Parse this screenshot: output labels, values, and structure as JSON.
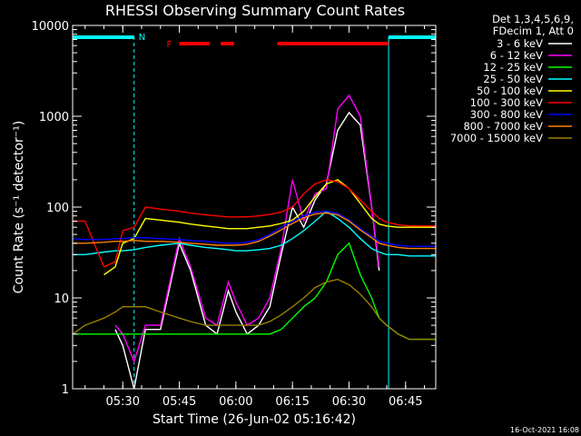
{
  "chart_data": {
    "type": "line",
    "title": "RHESSI Observing Summary Count Rates",
    "xlabel": "Start Time (26-Jun-02 05:16:42)",
    "ylabel": "Count Rate (s⁻¹ detector⁻¹)",
    "yscale": "log",
    "ylim": [
      1,
      10000
    ],
    "xlim": [
      "05:16:42",
      "06:53:00"
    ],
    "x_ticks": [
      "05:30",
      "05:45",
      "06:00",
      "06:15",
      "06:30",
      "06:45"
    ],
    "y_ticks": [
      "1",
      "10",
      "100",
      "1000",
      "10000"
    ],
    "legend_header": [
      "Det 1,3,4,5,6,9,",
      "FDecim 1, Att 0"
    ],
    "legend_position": "right",
    "flags": {
      "N_label": "N",
      "F_label": "F",
      "night_color": "#00ffff",
      "flare_color": "#ff0000",
      "night_segments": [
        [
          "05:16:42",
          "05:33:00"
        ],
        [
          "06:40:30",
          "06:53:00"
        ]
      ],
      "flare_segments": [
        [
          "05:45:00",
          "05:53:00"
        ],
        [
          "05:56:00",
          "05:59:30"
        ],
        [
          "06:11:00",
          "06:40:30"
        ]
      ]
    },
    "x": [
      "05:16:42",
      "05:20",
      "05:25",
      "05:28",
      "05:30",
      "05:33",
      "05:36",
      "05:40",
      "05:45",
      "05:48",
      "05:52",
      "05:55",
      "05:58",
      "06:00",
      "06:03",
      "06:06",
      "06:09",
      "06:12",
      "06:15",
      "06:18",
      "06:21",
      "06:24",
      "06:27",
      "06:30",
      "06:33",
      "06:36",
      "06:38",
      "06:40",
      "06:43",
      "06:46",
      "06:50",
      "06:53"
    ],
    "series": [
      {
        "name": "3 - 6 keV",
        "color": "#ffffff",
        "values": [
          null,
          null,
          null,
          4.5,
          3,
          1,
          4.5,
          4.5,
          40,
          20,
          5,
          4,
          12,
          7,
          4,
          5,
          8,
          30,
          100,
          60,
          120,
          180,
          700,
          1100,
          800,
          100,
          20,
          null,
          null,
          null,
          null,
          null
        ]
      },
      {
        "name": "6 - 12 keV",
        "color": "#ff00ff",
        "values": [
          null,
          null,
          null,
          5,
          4,
          2,
          5,
          5,
          45,
          22,
          6,
          5,
          15,
          9,
          5,
          6,
          10,
          35,
          200,
          70,
          140,
          160,
          1200,
          1700,
          1000,
          100,
          22,
          null,
          null,
          null,
          null,
          null
        ]
      },
      {
        "name": "12 - 25 keV",
        "color": "#00ff00",
        "values": [
          4,
          4,
          4,
          4,
          4,
          4,
          4,
          4,
          4,
          4,
          4,
          4,
          4,
          4,
          4,
          4,
          4,
          4.5,
          6,
          8,
          10,
          15,
          30,
          40,
          18,
          10,
          6,
          5,
          4,
          3.5,
          3.5,
          3.5
        ]
      },
      {
        "name": "25 - 50 keV",
        "color": "#00ffff",
        "values": [
          30,
          30,
          32,
          33,
          33,
          34,
          36,
          38,
          40,
          38,
          36,
          35,
          34,
          33,
          33,
          34,
          35,
          38,
          45,
          55,
          70,
          90,
          75,
          60,
          45,
          35,
          32,
          30,
          30,
          29,
          29,
          29
        ]
      },
      {
        "name": "50 - 100 keV",
        "color": "#ffff00",
        "values": [
          null,
          null,
          18,
          22,
          40,
          45,
          75,
          72,
          68,
          65,
          62,
          60,
          58,
          58,
          58,
          60,
          62,
          66,
          72,
          90,
          130,
          180,
          200,
          160,
          110,
          75,
          65,
          62,
          60,
          60,
          60,
          60
        ]
      },
      {
        "name": "100 - 300 keV",
        "color": "#ff0000",
        "values": [
          70,
          70,
          22,
          25,
          55,
          60,
          100,
          95,
          90,
          86,
          82,
          80,
          78,
          78,
          78,
          80,
          83,
          88,
          100,
          140,
          180,
          200,
          190,
          160,
          120,
          90,
          75,
          68,
          64,
          62,
          62,
          62
        ]
      },
      {
        "name": "300 - 800 keV",
        "color": "#0000ff",
        "values": [
          45,
          44,
          44,
          45,
          45,
          46,
          46,
          45,
          44,
          43,
          42,
          41,
          40,
          40,
          41,
          44,
          50,
          60,
          70,
          80,
          88,
          90,
          85,
          72,
          58,
          48,
          42,
          40,
          38,
          37,
          37,
          37
        ]
      },
      {
        "name": "800 - 7000 keV",
        "color": "#ff8000",
        "values": [
          40,
          40,
          41,
          42,
          42,
          43,
          42,
          42,
          41,
          40,
          39,
          38,
          38,
          38,
          39,
          42,
          48,
          56,
          66,
          76,
          84,
          86,
          82,
          70,
          56,
          46,
          40,
          38,
          36,
          35,
          35,
          35
        ]
      },
      {
        "name": "7000 - 15000 keV",
        "color": "#998000",
        "values": [
          4,
          5,
          6,
          7,
          8,
          8,
          8,
          7,
          6,
          5.5,
          5,
          5,
          5,
          5,
          5,
          5,
          5.5,
          6.5,
          8,
          10,
          13,
          15,
          16,
          14,
          11,
          8,
          6,
          5,
          4,
          3.5,
          3.5,
          3.5
        ]
      }
    ]
  },
  "footer": {
    "timestamp": "16-Oct-2021 16:08"
  }
}
